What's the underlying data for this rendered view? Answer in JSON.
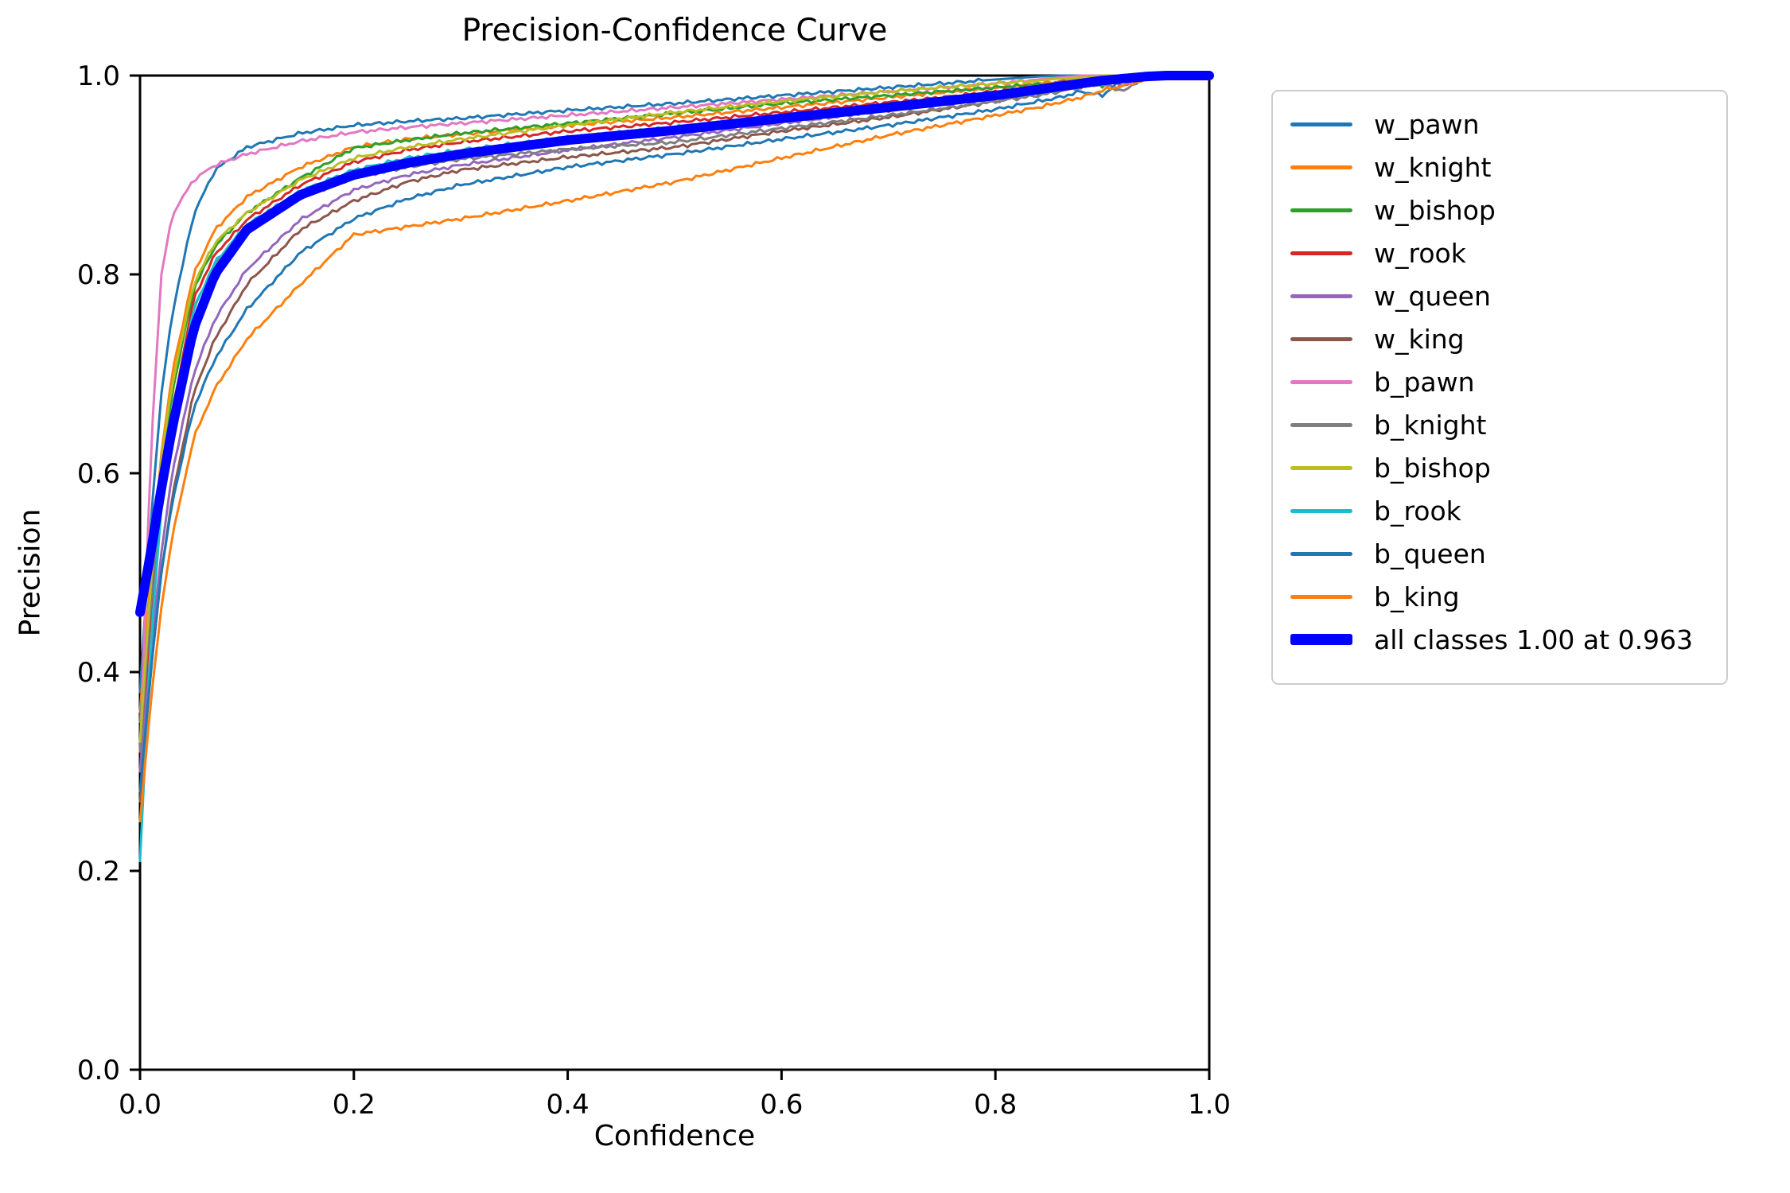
{
  "chart_data": {
    "type": "line",
    "title": "Precision-Confidence Curve",
    "xlabel": "Confidence",
    "ylabel": "Precision",
    "xlim": [
      0,
      1
    ],
    "ylim": [
      0,
      1
    ],
    "xticks": [
      "0.0",
      "0.2",
      "0.4",
      "0.6",
      "0.8",
      "1.0"
    ],
    "yticks": [
      "0.0",
      "0.2",
      "0.4",
      "0.6",
      "0.8",
      "1.0"
    ],
    "grid": false,
    "legend_position": "outside-right",
    "annotation": "all classes 1.00 at 0.963",
    "x": [
      0,
      0.01,
      0.02,
      0.03,
      0.05,
      0.07,
      0.1,
      0.15,
      0.2,
      0.25,
      0.3,
      0.4,
      0.5,
      0.6,
      0.7,
      0.75,
      0.8,
      0.84,
      0.86,
      0.88,
      0.9,
      0.92,
      0.94,
      0.96,
      1
    ],
    "series": [
      {
        "name": "w_pawn",
        "color": "#1f77b4",
        "lw": 3,
        "values": [
          0.38,
          0.55,
          0.68,
          0.76,
          0.86,
          0.905,
          0.928,
          0.942,
          0.95,
          0.954,
          0.957,
          0.965,
          0.972,
          0.98,
          0.988,
          0.992,
          0.996,
          0.999,
          1,
          1,
          1,
          1,
          1,
          1,
          1
        ]
      },
      {
        "name": "w_knight",
        "color": "#ff7f0e",
        "lw": 3,
        "values": [
          0.36,
          0.5,
          0.62,
          0.7,
          0.8,
          0.845,
          0.878,
          0.908,
          0.928,
          0.936,
          0.941,
          0.95,
          0.958,
          0.968,
          0.978,
          0.983,
          0.988,
          0.992,
          0.994,
          0.997,
          0.999,
          1,
          1,
          1,
          1
        ]
      },
      {
        "name": "w_bishop",
        "color": "#2ca02c",
        "lw": 3,
        "values": [
          0.35,
          0.48,
          0.6,
          0.68,
          0.785,
          0.828,
          0.862,
          0.897,
          0.927,
          0.935,
          0.942,
          0.952,
          0.962,
          0.972,
          0.98,
          0.984,
          0.988,
          0.991,
          0.992,
          0.996,
          0.99,
          1,
          1,
          1,
          1
        ]
      },
      {
        "name": "w_rook",
        "color": "#d62728",
        "lw": 3,
        "values": [
          0.3,
          0.46,
          0.58,
          0.66,
          0.775,
          0.82,
          0.855,
          0.89,
          0.913,
          0.925,
          0.933,
          0.944,
          0.953,
          0.963,
          0.973,
          0.978,
          0.984,
          0.988,
          0.99,
          0.993,
          0.996,
          0.998,
          1,
          1,
          1
        ]
      },
      {
        "name": "w_queen",
        "color": "#9467bd",
        "lw": 3,
        "values": [
          0.3,
          0.42,
          0.52,
          0.6,
          0.7,
          0.755,
          0.805,
          0.855,
          0.885,
          0.9,
          0.91,
          0.925,
          0.938,
          0.952,
          0.965,
          0.972,
          0.979,
          0.985,
          0.988,
          0.992,
          0.996,
          0.99,
          1,
          1,
          1
        ]
      },
      {
        "name": "w_king",
        "color": "#8c564b",
        "lw": 3,
        "values": [
          0.27,
          0.4,
          0.5,
          0.575,
          0.68,
          0.735,
          0.79,
          0.845,
          0.874,
          0.893,
          0.905,
          0.918,
          0.928,
          0.944,
          0.958,
          0.966,
          0.974,
          0.983,
          0.995,
          0.987,
          0.998,
          0.992,
          1,
          1,
          1
        ]
      },
      {
        "name": "b_pawn",
        "color": "#e377c2",
        "lw": 3,
        "values": [
          0.32,
          0.62,
          0.8,
          0.86,
          0.895,
          0.91,
          0.921,
          0.934,
          0.943,
          0.948,
          0.952,
          0.96,
          0.968,
          0.976,
          0.984,
          0.988,
          0.992,
          0.996,
          0.998,
          1,
          1,
          1,
          1,
          1,
          1
        ]
      },
      {
        "name": "b_knight",
        "color": "#7f7f7f",
        "lw": 3,
        "values": [
          0.32,
          0.47,
          0.58,
          0.655,
          0.765,
          0.81,
          0.845,
          0.877,
          0.897,
          0.908,
          0.916,
          0.926,
          0.933,
          0.947,
          0.96,
          0.967,
          0.974,
          0.98,
          0.984,
          0.988,
          0.992,
          0.984,
          1,
          1,
          1
        ]
      },
      {
        "name": "b_bishop",
        "color": "#bcbd22",
        "lw": 3,
        "values": [
          0.33,
          0.49,
          0.615,
          0.69,
          0.79,
          0.832,
          0.862,
          0.895,
          0.917,
          0.928,
          0.936,
          0.95,
          0.963,
          0.974,
          0.984,
          0.988,
          0.992,
          0.995,
          0.997,
          0.998,
          1,
          1,
          1,
          1,
          1
        ]
      },
      {
        "name": "b_rook",
        "color": "#17becf",
        "lw": 3,
        "values": [
          0.21,
          0.43,
          0.565,
          0.65,
          0.765,
          0.812,
          0.85,
          0.884,
          0.905,
          0.917,
          0.925,
          0.938,
          0.948,
          0.958,
          0.968,
          0.973,
          0.978,
          0.983,
          0.986,
          0.99,
          0.994,
          0.997,
          1,
          1,
          1
        ]
      },
      {
        "name": "b_queen",
        "color": "#1f77b4",
        "lw": 3,
        "values": [
          0.28,
          0.4,
          0.5,
          0.57,
          0.665,
          0.715,
          0.765,
          0.822,
          0.856,
          0.876,
          0.89,
          0.908,
          0.921,
          0.936,
          0.95,
          0.958,
          0.966,
          0.974,
          0.978,
          0.984,
          0.98,
          0.997,
          1,
          1,
          1
        ]
      },
      {
        "name": "b_king",
        "color": "#ff7f0e",
        "lw": 3,
        "values": [
          0.25,
          0.37,
          0.465,
          0.535,
          0.635,
          0.685,
          0.735,
          0.79,
          0.84,
          0.848,
          0.856,
          0.874,
          0.893,
          0.917,
          0.94,
          0.95,
          0.96,
          0.968,
          0.973,
          0.978,
          0.985,
          0.99,
          0.996,
          1,
          1
        ]
      },
      {
        "name": "all classes 1.00 at 0.963",
        "color": "#0000ff",
        "lw": 12,
        "values": [
          0.46,
          0.52,
          0.585,
          0.645,
          0.745,
          0.8,
          0.845,
          0.88,
          0.9,
          0.912,
          0.921,
          0.935,
          0.945,
          0.957,
          0.968,
          0.974,
          0.98,
          0.986,
          0.989,
          0.992,
          0.995,
          0.997,
          0.999,
          1,
          1
        ]
      }
    ]
  }
}
